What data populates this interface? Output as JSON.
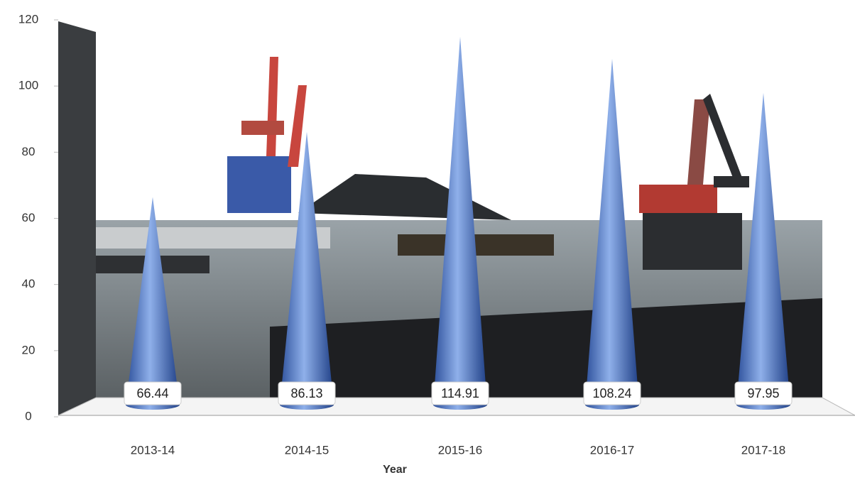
{
  "chart_data": {
    "type": "cone",
    "categories": [
      "2013-14",
      "2014-15",
      "2015-16",
      "2016-17",
      "2017-18"
    ],
    "values": [
      66.44,
      86.13,
      114.91,
      108.24,
      97.95
    ],
    "color": "#4a78c8",
    "x_label": "Year",
    "ylim": [
      0,
      120
    ],
    "yticks": [
      0,
      20,
      40,
      60,
      80,
      100,
      120
    ]
  }
}
